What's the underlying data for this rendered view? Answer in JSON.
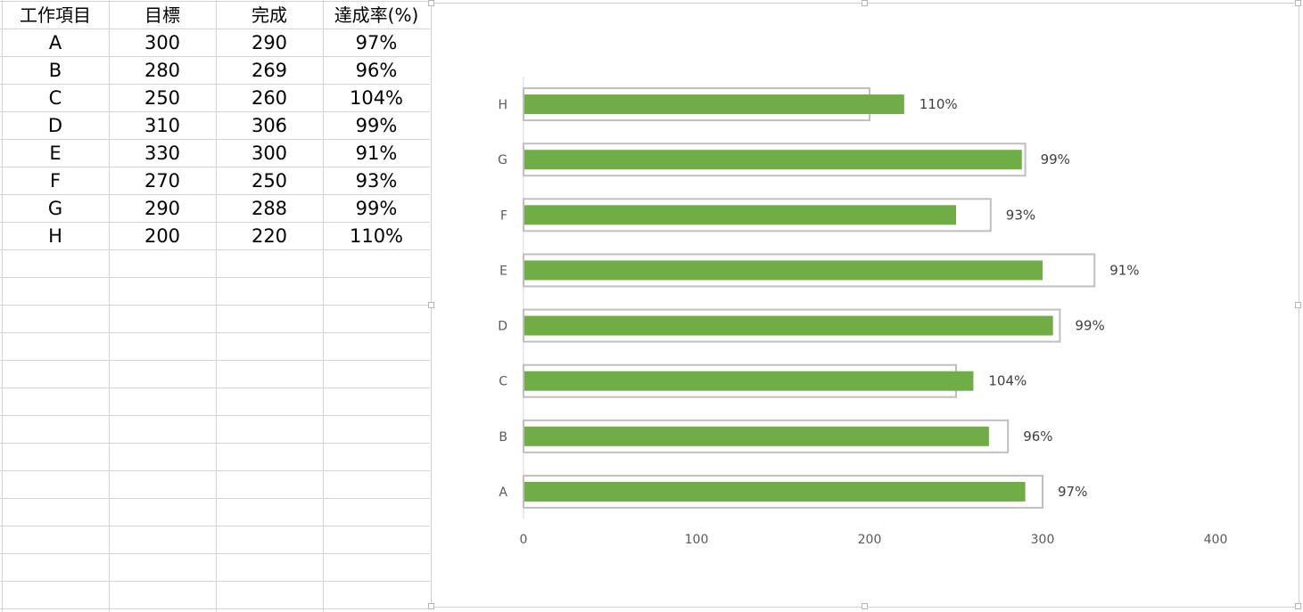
{
  "sheet": {
    "headers": [
      "工作項目",
      "目標",
      "完成",
      "達成率(%)"
    ],
    "rows": [
      [
        "A",
        "300",
        "290",
        "97%"
      ],
      [
        "B",
        "280",
        "269",
        "96%"
      ],
      [
        "C",
        "250",
        "260",
        "104%"
      ],
      [
        "D",
        "310",
        "306",
        "99%"
      ],
      [
        "E",
        "330",
        "300",
        "91%"
      ],
      [
        "F",
        "270",
        "250",
        "93%"
      ],
      [
        "G",
        "290",
        "288",
        "99%"
      ],
      [
        "H",
        "200",
        "220",
        "110%"
      ]
    ]
  },
  "chart_data": {
    "type": "bar",
    "orientation": "horizontal",
    "categories": [
      "A",
      "B",
      "C",
      "D",
      "E",
      "F",
      "G",
      "H"
    ],
    "series": [
      {
        "values": [
          300,
          280,
          250,
          310,
          330,
          270,
          290,
          200
        ],
        "style": "outline",
        "color": "#bfbfbf"
      },
      {
        "values": [
          290,
          269,
          260,
          306,
          300,
          250,
          288,
          220
        ],
        "style": "filled",
        "color": "#70ad47"
      }
    ],
    "data_labels": [
      "97%",
      "96%",
      "104%",
      "99%",
      "91%",
      "93%",
      "99%",
      "110%"
    ],
    "xlim": [
      0,
      400
    ],
    "xticks": [
      "0",
      "100",
      "200",
      "300",
      "400"
    ],
    "grid": false,
    "legend": "none",
    "title": "",
    "xlabel": "",
    "ylabel": ""
  }
}
